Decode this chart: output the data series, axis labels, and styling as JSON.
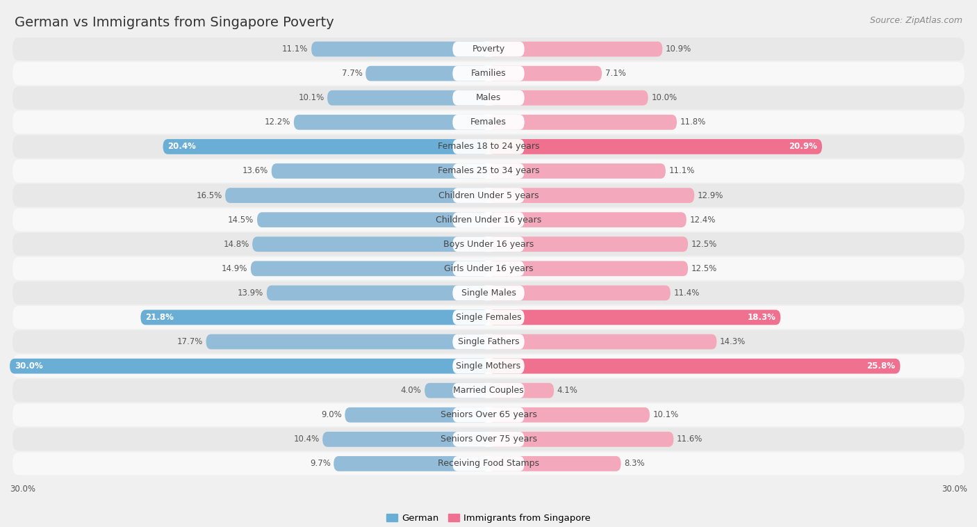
{
  "title": "German vs Immigrants from Singapore Poverty",
  "source": "Source: ZipAtlas.com",
  "categories": [
    "Poverty",
    "Families",
    "Males",
    "Females",
    "Females 18 to 24 years",
    "Females 25 to 34 years",
    "Children Under 5 years",
    "Children Under 16 years",
    "Boys Under 16 years",
    "Girls Under 16 years",
    "Single Males",
    "Single Females",
    "Single Fathers",
    "Single Mothers",
    "Married Couples",
    "Seniors Over 65 years",
    "Seniors Over 75 years",
    "Receiving Food Stamps"
  ],
  "german_values": [
    11.1,
    7.7,
    10.1,
    12.2,
    20.4,
    13.6,
    16.5,
    14.5,
    14.8,
    14.9,
    13.9,
    21.8,
    17.7,
    30.0,
    4.0,
    9.0,
    10.4,
    9.7
  ],
  "singapore_values": [
    10.9,
    7.1,
    10.0,
    11.8,
    20.9,
    11.1,
    12.9,
    12.4,
    12.5,
    12.5,
    11.4,
    18.3,
    14.3,
    25.8,
    4.1,
    10.1,
    11.6,
    8.3
  ],
  "german_color": "#92bcd8",
  "singapore_color": "#f4a8bc",
  "german_highlight_color": "#6aaed6",
  "singapore_highlight_color": "#f07090",
  "highlight_rows": [
    4,
    11,
    13
  ],
  "background_color": "#f0f0f0",
  "row_bg_even": "#e8e8e8",
  "row_bg_odd": "#f8f8f8",
  "axis_max": 30.0,
  "legend_german": "German",
  "legend_singapore": "Immigrants from Singapore",
  "title_fontsize": 14,
  "source_fontsize": 9,
  "label_fontsize": 9,
  "value_fontsize": 8.5
}
